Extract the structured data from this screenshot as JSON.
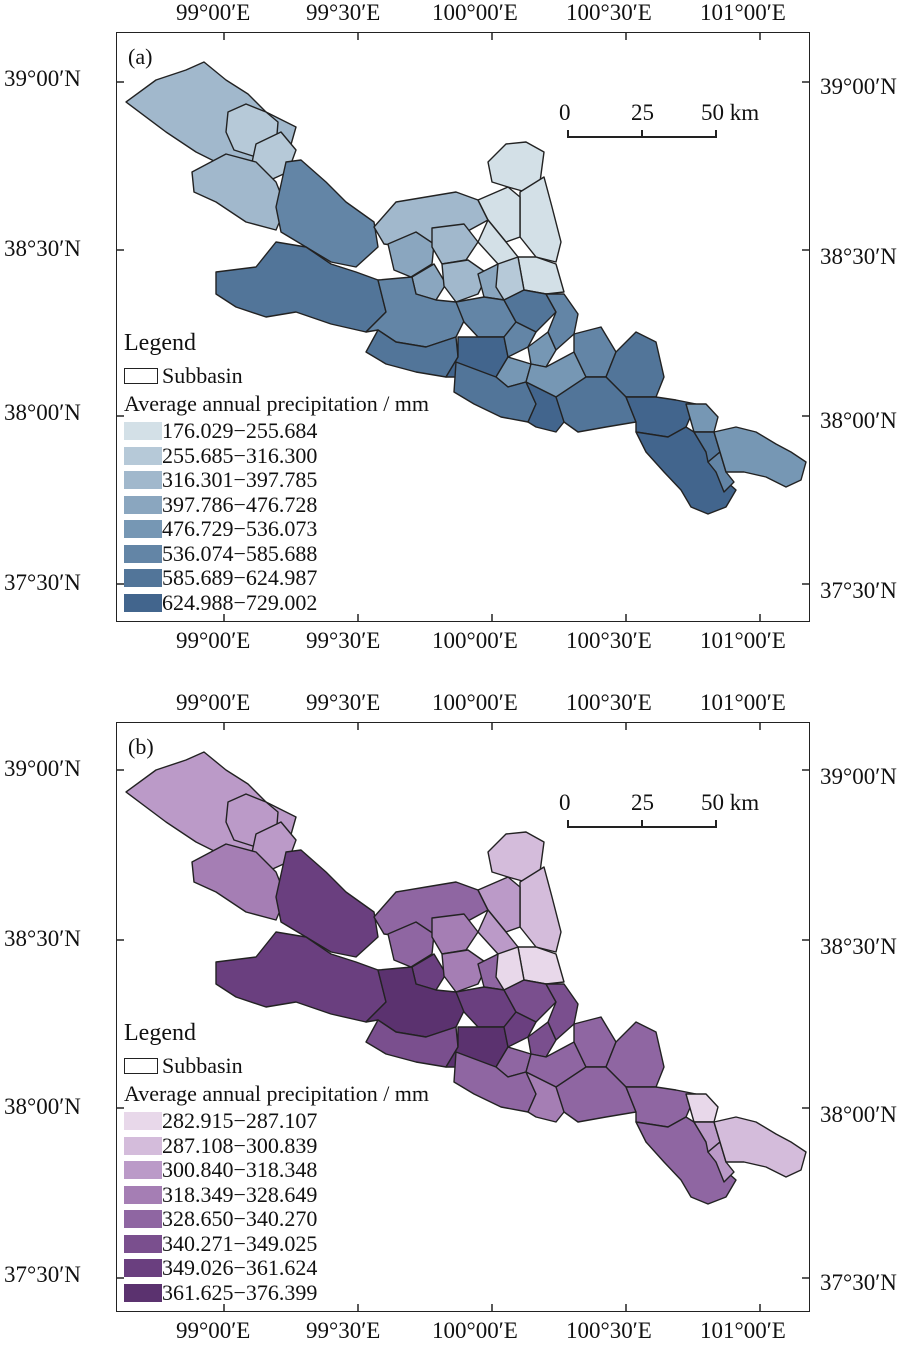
{
  "panels": [
    {
      "id": "a",
      "label": "(a)",
      "lon_labels": [
        "99°00′E",
        "99°30′E",
        "100°00′E",
        "100°30′E",
        "101°00′E"
      ],
      "lat_labels": [
        "39°00′N",
        "38°30′N",
        "38°00′N",
        "37°30′N"
      ],
      "scale": {
        "zero": "0",
        "mid": "25",
        "end": "50 km"
      },
      "legend": {
        "title": "Legend",
        "subbasin": "Subbasin",
        "precip_title": "Average annual precipitation / mm",
        "classes": [
          {
            "range": "176.029−255.684",
            "color": "#d3e0e7"
          },
          {
            "range": "255.685−316.300",
            "color": "#b6c9d8"
          },
          {
            "range": "316.301−397.785",
            "color": "#a1b8cc"
          },
          {
            "range": "397.786−476.728",
            "color": "#8aa6bf"
          },
          {
            "range": "476.729−536.073",
            "color": "#7697b4"
          },
          {
            "range": "536.074−585.688",
            "color": "#6385a6"
          },
          {
            "range": "585.689−624.987",
            "color": "#527599"
          },
          {
            "range": "624.988−729.002",
            "color": "#42658d"
          }
        ]
      }
    },
    {
      "id": "b",
      "label": "(b)",
      "lon_labels": [
        "99°00′E",
        "99°30′E",
        "100°00′E",
        "100°30′E",
        "101°00′E"
      ],
      "lat_labels": [
        "39°00′N",
        "38°30′N",
        "38°00′N",
        "37°30′N"
      ],
      "scale": {
        "zero": "0",
        "mid": "25",
        "end": "50 km"
      },
      "legend": {
        "title": "Legend",
        "subbasin": "Subbasin",
        "precip_title": "Average annual precipitation / mm",
        "classes": [
          {
            "range": "282.915−287.107",
            "color": "#e8d8ea"
          },
          {
            "range": "287.108−300.839",
            "color": "#d4bcdb"
          },
          {
            "range": "300.840−318.348",
            "color": "#bb9ac8"
          },
          {
            "range": "318.349−328.649",
            "color": "#a57eb4"
          },
          {
            "range": "328.650−340.270",
            "color": "#8f66a2"
          },
          {
            "range": "340.271−349.025",
            "color": "#7a4f8e"
          },
          {
            "range": "349.026−361.624",
            "color": "#6a3f7f"
          },
          {
            "range": "361.625−376.399",
            "color": "#5b326f"
          }
        ]
      }
    }
  ]
}
